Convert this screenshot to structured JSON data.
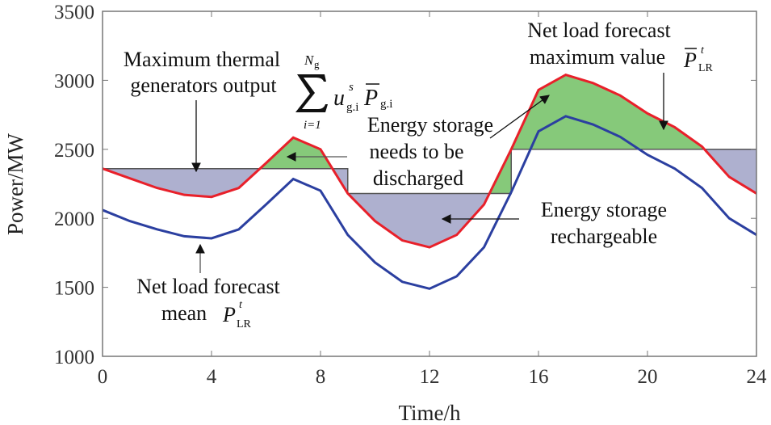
{
  "chart_data": {
    "type": "line",
    "xlabel": "Time/h",
    "ylabel": "Power/MW",
    "xlim": [
      0,
      24
    ],
    "ylim": [
      1000,
      3500
    ],
    "xticks": [
      "0",
      "4",
      "8",
      "12",
      "16",
      "20",
      "24"
    ],
    "yticks": [
      "1000",
      "1500",
      "2000",
      "2500",
      "3000",
      "3500"
    ],
    "grid": false,
    "x": [
      0,
      1,
      2,
      3,
      4,
      5,
      6,
      7,
      8,
      9,
      10,
      11,
      12,
      13,
      14,
      15,
      16,
      17,
      18,
      19,
      20,
      21,
      22,
      23,
      24
    ],
    "series": [
      {
        "id": "max",
        "color": "#e8202a",
        "values": [
          2360,
          2290,
          2220,
          2170,
          2155,
          2220,
          2400,
          2585,
          2500,
          2180,
          1980,
          1840,
          1790,
          1880,
          2100,
          2500,
          2930,
          3040,
          2980,
          2890,
          2760,
          2660,
          2520,
          2300,
          2180
        ]
      },
      {
        "id": "mean",
        "color": "#2b3fa0",
        "values": [
          2060,
          1980,
          1920,
          1870,
          1855,
          1920,
          2100,
          2285,
          2200,
          1880,
          1680,
          1540,
          1490,
          1580,
          1790,
          2190,
          2630,
          2740,
          2680,
          2590,
          2460,
          2360,
          2220,
          2000,
          1880
        ]
      }
    ],
    "thermal_limit_steps": [
      {
        "from": 0,
        "to": 9,
        "value": 2360
      },
      {
        "from": 9,
        "to": 15,
        "value": 2180
      },
      {
        "from": 15,
        "to": 24,
        "value": 2500
      }
    ],
    "fill_colors": {
      "discharge": "#86c97a",
      "recharge": "#aeb0cf",
      "limit_line": "#555555"
    },
    "annotations": {
      "max_thermal": {
        "line1": "Maximum thermal",
        "line2": "generators output",
        "sum_upper": "N",
        "sum_upper_sub": "g",
        "sum_lower": "i=1",
        "u": "u",
        "u_sup": "s",
        "u_sub": "g.i",
        "p": "P",
        "p_sub": "g.i"
      },
      "discharge": {
        "line1": "Energy storage",
        "line2": "needs to be",
        "line3": "discharged"
      },
      "recharge": {
        "line1": "Energy storage",
        "line2": "rechargeable"
      },
      "max_forecast": {
        "line1": "Net load forecast",
        "line2": "maximum value",
        "p": "P",
        "p_sup": "t",
        "p_sub": "LR"
      },
      "mean_forecast": {
        "line1": "Net load forecast",
        "line2": "mean",
        "p": "P",
        "p_sup": "t",
        "p_sub": "LR"
      }
    }
  }
}
